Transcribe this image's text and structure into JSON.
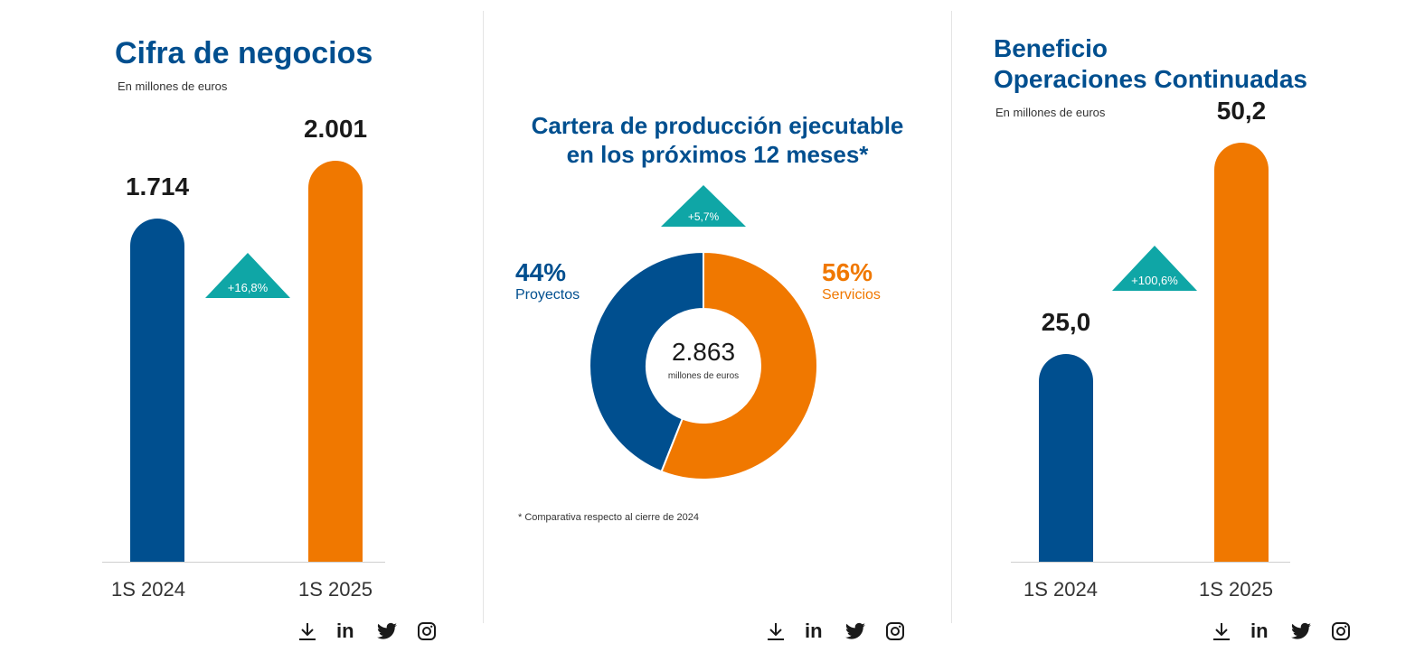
{
  "colors": {
    "blue": "#004f8f",
    "orange": "#f07800",
    "teal": "#0fa6a6"
  },
  "panels": {
    "revenue": {
      "title": "Cifra de negocios",
      "subtitle": "En millones de euros",
      "growth": "+16,8%"
    },
    "backlog": {
      "title_line1": "Cartera de producción ejecutable",
      "title_line2": "en los próximos 12 meses*",
      "growth": "+5,7%",
      "center_value": "2.863",
      "center_unit": "millones de euros",
      "footnote": "* Comparativa respecto al cierre de 2024"
    },
    "profit": {
      "title_line1": "Beneficio",
      "title_line2": "Operaciones Continuadas",
      "subtitle": "En millones de euros",
      "growth": "+100,6%"
    }
  },
  "chart_data": [
    {
      "type": "bar",
      "title": "Cifra de negocios",
      "subtitle": "En millones de euros",
      "categories": [
        "1S 2024",
        "1S 2025"
      ],
      "values": [
        1714,
        2001
      ],
      "value_labels": [
        "1.714",
        "2.001"
      ],
      "colors": [
        "#004f8f",
        "#f07800"
      ],
      "ylim": [
        0,
        2250
      ]
    },
    {
      "type": "pie",
      "title": "Cartera de producción ejecutable en los próximos 12 meses*",
      "slices": [
        {
          "name": "Proyectos",
          "value": 44,
          "label": "44%",
          "color": "#004f8f"
        },
        {
          "name": "Servicios",
          "value": 56,
          "label": "56%",
          "color": "#f07800"
        }
      ],
      "total": "2.863",
      "unit": "millones de euros"
    },
    {
      "type": "bar",
      "title": "Beneficio Operaciones Continuadas",
      "subtitle": "En millones de euros",
      "categories": [
        "1S 2024",
        "1S 2025"
      ],
      "values": [
        25.0,
        50.2
      ],
      "value_labels": [
        "25,0",
        "50,2"
      ],
      "colors": [
        "#004f8f",
        "#f07800"
      ],
      "ylim": [
        0,
        54
      ]
    }
  ],
  "share": {
    "download_icon": "download-icon",
    "linkedin_label": "in",
    "twitter_icon": "twitter-icon",
    "instagram_icon": "instagram-icon"
  }
}
